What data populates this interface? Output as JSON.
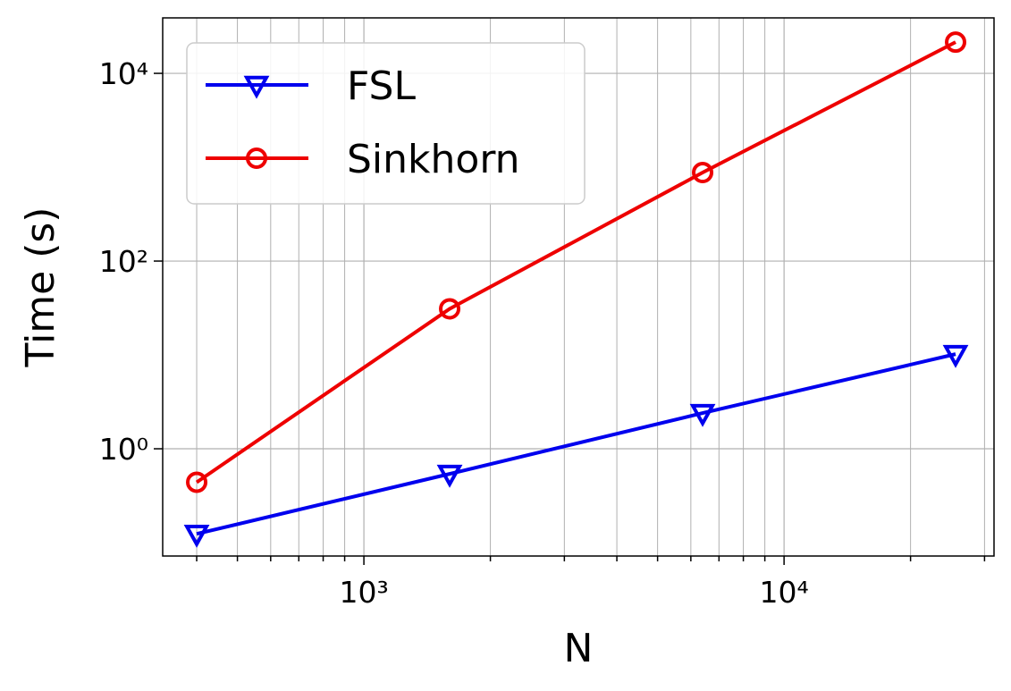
{
  "chart_data": {
    "type": "line",
    "xlabel": "N",
    "ylabel": "Time (s)",
    "x": [
      400,
      1600,
      6400,
      25600
    ],
    "series": [
      {
        "name": "FSL",
        "color": "#0000ee",
        "marker": "triangle-down",
        "values": [
          0.124,
          0.54,
          2.4,
          10.2
        ]
      },
      {
        "name": "Sinkhorn",
        "color": "#ee0000",
        "marker": "circle",
        "values": [
          0.44,
          31,
          877,
          21500
        ]
      }
    ],
    "xscale": "log",
    "yscale": "log",
    "xlim": [
      332,
      31600
    ],
    "ylim": [
      0.072,
      39000
    ],
    "xticks": [
      {
        "value": 1000,
        "label": "10³"
      },
      {
        "value": 10000,
        "label": "10⁴"
      }
    ],
    "yticks": [
      {
        "value": 1,
        "label": "10⁰"
      },
      {
        "value": 100,
        "label": "10²"
      },
      {
        "value": 10000,
        "label": "10⁴"
      }
    ],
    "grid": true,
    "legend": "upper left"
  }
}
